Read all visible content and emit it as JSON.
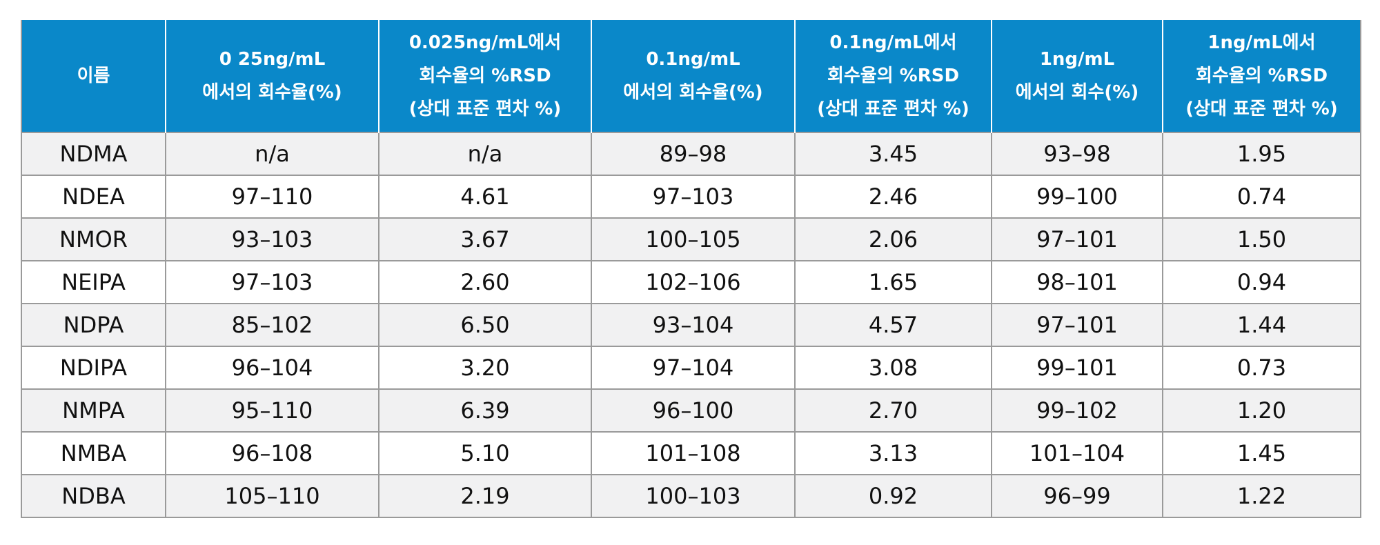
{
  "table": {
    "headers": [
      [
        "이름"
      ],
      [
        "0 25ng/mL",
        "에서의 회수율(%)"
      ],
      [
        "0.025ng/mL에서",
        "회수율의 %RSD",
        "(상대 표준 편차 %)"
      ],
      [
        "0.1ng/mL",
        "에서의 회수율(%)"
      ],
      [
        "0.1ng/mL에서",
        "회수율의 %RSD",
        "(상대 표준 편차 %)"
      ],
      [
        "1ng/mL",
        "에서의 회수(%)"
      ],
      [
        "1ng/mL에서",
        "회수율의 %RSD",
        "(상대 표준 편차 %)"
      ]
    ],
    "rows": [
      [
        "NDMA",
        "n/a",
        "n/a",
        "89–98",
        "3.45",
        "93–98",
        "1.95"
      ],
      [
        "NDEA",
        "97–110",
        "4.61",
        "97–103",
        "2.46",
        "99–100",
        "0.74"
      ],
      [
        "NMOR",
        "93–103",
        "3.67",
        "100–105",
        "2.06",
        "97–101",
        "1.50"
      ],
      [
        "NEIPA",
        "97–103",
        "2.60",
        "102–106",
        "1.65",
        "98–101",
        "0.94"
      ],
      [
        "NDPA",
        "85–102",
        "6.50",
        "93–104",
        "4.57",
        "97–101",
        "1.44"
      ],
      [
        "NDIPA",
        "96–104",
        "3.20",
        "97–104",
        "3.08",
        "99–101",
        "0.73"
      ],
      [
        "NMPA",
        "95–110",
        "6.39",
        "96–100",
        "2.70",
        "99–102",
        "1.20"
      ],
      [
        "NMBA",
        "96–108",
        "5.10",
        "101–108",
        "3.13",
        "101–104",
        "1.45"
      ],
      [
        "NDBA",
        "105–110",
        "2.19",
        "100–103",
        "0.92",
        "96–99",
        "1.22"
      ]
    ]
  },
  "colors": {
    "header_bg": "#0a88c9",
    "header_text": "#ffffff",
    "row_alt_bg": "#f1f1f2",
    "border": "#9a9a9a"
  }
}
